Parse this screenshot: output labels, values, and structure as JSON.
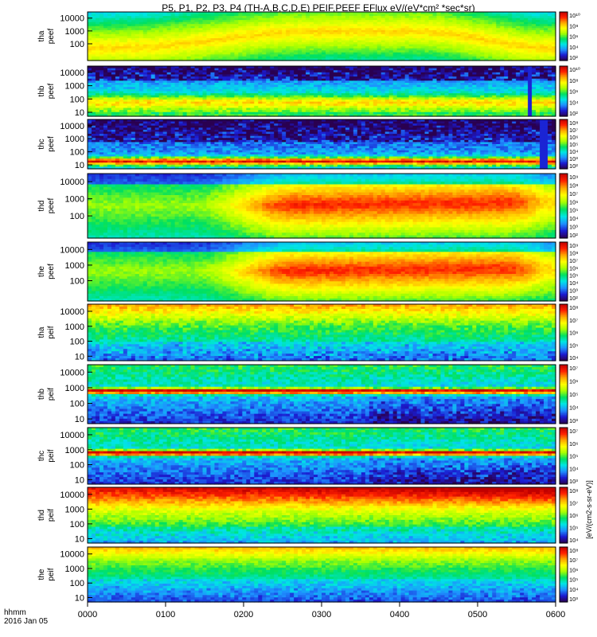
{
  "chart_data": {
    "type": "heatmap",
    "title": "P5, P1, P2, P3, P4 (TH-A,B,C,D,E) PEIF,PEEF EFlux eV/(eV*cm² *sec*sr)",
    "x_axis": {
      "ticks": [
        "0000",
        "0100",
        "0200",
        "0300",
        "0400",
        "0500",
        "0600"
      ],
      "label_line1": "hhmm",
      "label_line2": "2016 Jan 05",
      "range_minutes": [
        0,
        360
      ]
    },
    "y_axis": {
      "scale": "log",
      "ticks": [
        "10",
        "100",
        "1000",
        "10000"
      ],
      "range_eV": [
        5,
        30000
      ]
    },
    "colorbar_label": "[eV/(cm2-s-sr-eV)]",
    "colormap": [
      "#2a0050",
      "#1b1bd0",
      "#1e90ff",
      "#00e5e5",
      "#00e060",
      "#a8ff00",
      "#ffff00",
      "#ffa500",
      "#ff2000",
      "#c00000"
    ],
    "panels": [
      {
        "probe": "tha",
        "product": "peef",
        "ylabel1": "tha",
        "ylabel2": "peef",
        "cbar_ticks": [
          "10²",
          "10⁴",
          "10⁶",
          "10⁸",
          "10¹⁰"
        ],
        "pattern": "e_flank",
        "energy_ticks": [
          "100",
          "1000",
          "10000"
        ]
      },
      {
        "probe": "thb",
        "product": "peef",
        "ylabel1": "thb",
        "ylabel2": "peef",
        "cbar_ticks": [
          "10²",
          "10⁴",
          "10⁶",
          "10⁸",
          "10¹⁰"
        ],
        "pattern": "e_wind",
        "gap_minutes": [
          338,
          342
        ],
        "energy_ticks": [
          "10",
          "100",
          "1000",
          "10000"
        ]
      },
      {
        "probe": "thc",
        "product": "peef",
        "ylabel1": "thc",
        "ylabel2": "peef",
        "cbar_ticks": [
          "10²",
          "10³",
          "10⁴",
          "10⁵",
          "10⁶",
          "10⁷",
          "10⁸"
        ],
        "pattern": "e_wind2",
        "gap_minutes": [
          348,
          353
        ],
        "energy_ticks": [
          "10",
          "100",
          "1000",
          "10000"
        ]
      },
      {
        "probe": "thd",
        "product": "peef",
        "ylabel1": "thd",
        "ylabel2": "peef",
        "cbar_ticks": [
          "10²",
          "10³",
          "10⁴",
          "10⁵",
          "10⁶",
          "10⁷",
          "10⁸",
          "10⁹"
        ],
        "pattern": "e_sheath",
        "energy_ticks": [
          "100",
          "1000",
          "10000"
        ]
      },
      {
        "probe": "the",
        "product": "peef",
        "ylabel1": "the",
        "ylabel2": "peef",
        "cbar_ticks": [
          "10²",
          "10³",
          "10⁴",
          "10⁵",
          "10⁶",
          "10⁷",
          "10⁸",
          "10⁹"
        ],
        "pattern": "e_sheath",
        "energy_ticks": [
          "100",
          "1000",
          "10000"
        ]
      },
      {
        "probe": "tha",
        "product": "peif",
        "ylabel1": "tha",
        "ylabel2": "peif",
        "cbar_ticks": [
          "10⁴",
          "10⁵",
          "10⁶",
          "10⁷",
          "10⁸"
        ],
        "pattern": "i_flank",
        "energy_ticks": [
          "10",
          "100",
          "1000",
          "10000"
        ]
      },
      {
        "probe": "thb",
        "product": "peif",
        "ylabel1": "thb",
        "ylabel2": "peif",
        "cbar_ticks": [
          "10³",
          "10⁴",
          "10⁵",
          "10⁶",
          "10⁷"
        ],
        "pattern": "i_wind",
        "energy_ticks": [
          "10",
          "100",
          "1000",
          "10000"
        ]
      },
      {
        "probe": "thc",
        "product": "peif",
        "ylabel1": "thc",
        "ylabel2": "peif",
        "cbar_ticks": [
          "10³",
          "10⁴",
          "10⁵",
          "10⁶",
          "10⁷"
        ],
        "pattern": "i_wind",
        "energy_ticks": [
          "10",
          "100",
          "1000",
          "10000"
        ]
      },
      {
        "probe": "thd",
        "product": "peif",
        "ylabel1": "thd",
        "ylabel2": "peif",
        "cbar_ticks": [
          "10⁴",
          "10⁵",
          "10⁶",
          "10⁷",
          "10⁸"
        ],
        "pattern": "i_sheath",
        "energy_ticks": [
          "10",
          "100",
          "1000",
          "10000"
        ]
      },
      {
        "probe": "the",
        "product": "peif",
        "ylabel1": "the",
        "ylabel2": "peif",
        "cbar_ticks": [
          "10³",
          "10⁴",
          "10⁵",
          "10⁶",
          "10⁷",
          "10⁸"
        ],
        "pattern": "i_flank2",
        "energy_ticks": [
          "10",
          "100",
          "1000",
          "10000"
        ]
      }
    ]
  }
}
